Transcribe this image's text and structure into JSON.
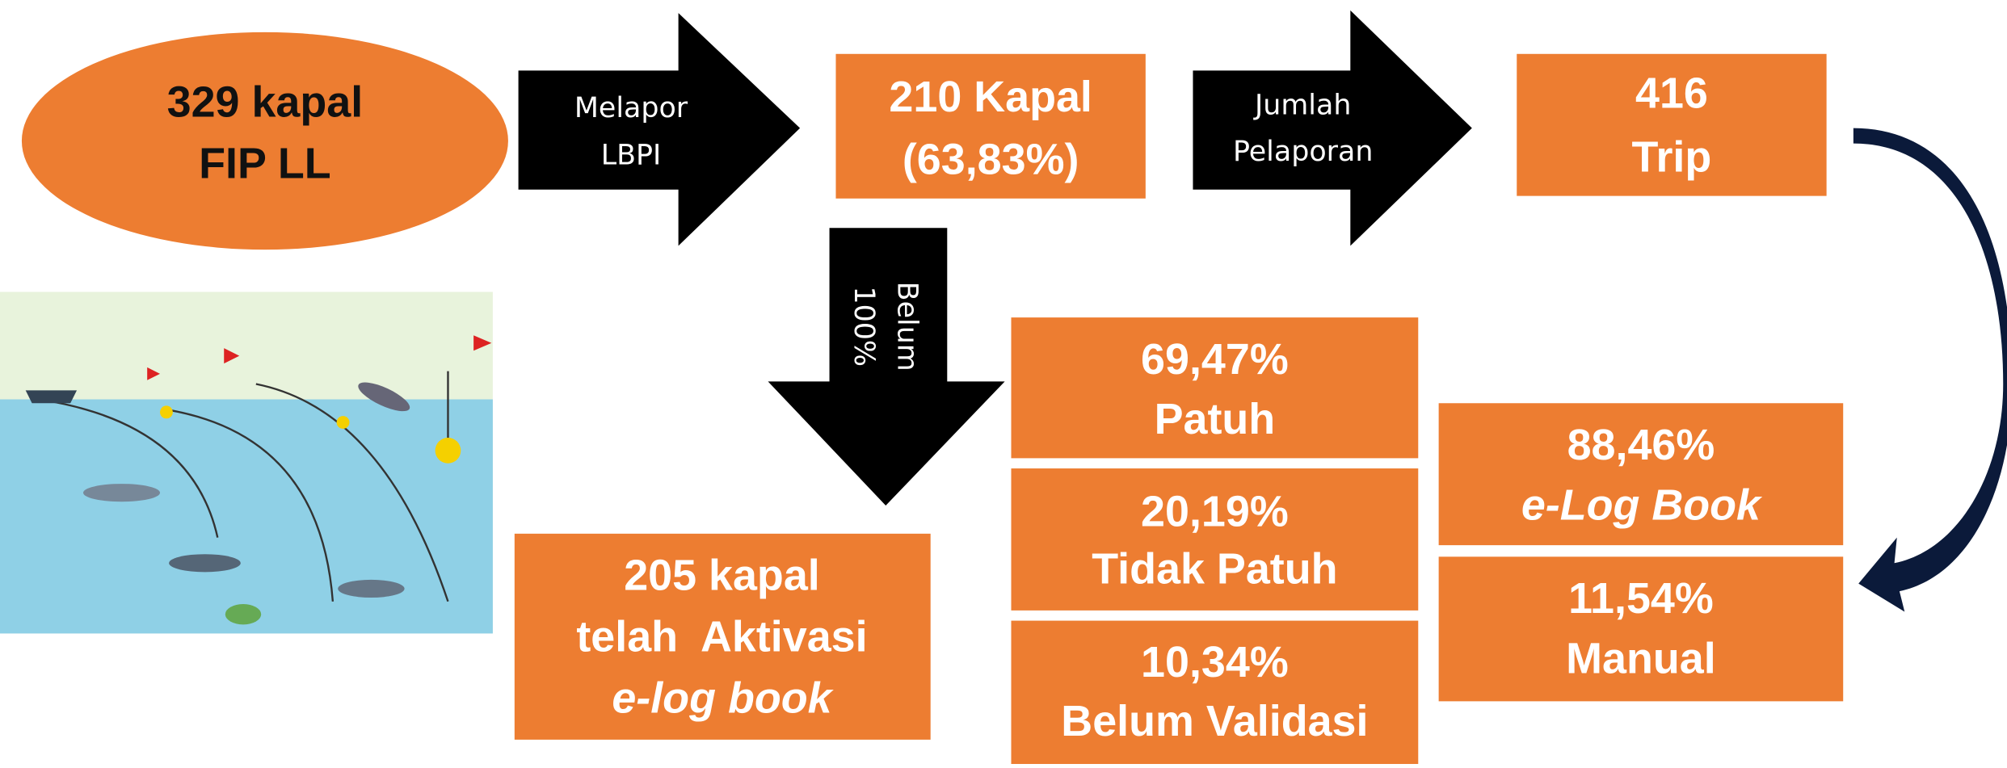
{
  "nodes": [
    {
      "lines": [
        "329 kapal",
        "FIP LL"
      ]
    },
    {
      "lines": [
        "210 Kapal",
        "(63,83%)"
      ]
    },
    {
      "lines": [
        "416",
        "Trip"
      ]
    },
    {
      "lines": [
        "205 kapal",
        "telah  Aktivasi",
        "e-log book"
      ]
    },
    {
      "lines": [
        "69,47%",
        "Patuh"
      ]
    },
    {
      "lines": [
        "20,19%",
        "Tidak Patuh"
      ]
    },
    {
      "lines": [
        "10,34%",
        "Belum Validasi"
      ]
    },
    {
      "lines": [
        "88,46%",
        "e-Log Book"
      ]
    },
    {
      "lines": [
        "11,54%",
        "Manual"
      ]
    }
  ],
  "arrows": [
    {
      "lines": [
        "Melapor",
        "LBPI"
      ]
    },
    {
      "lines": [
        "Jumlah",
        "Pelaporan"
      ]
    },
    {
      "lines": [
        "Belum",
        "100%"
      ]
    }
  ]
}
